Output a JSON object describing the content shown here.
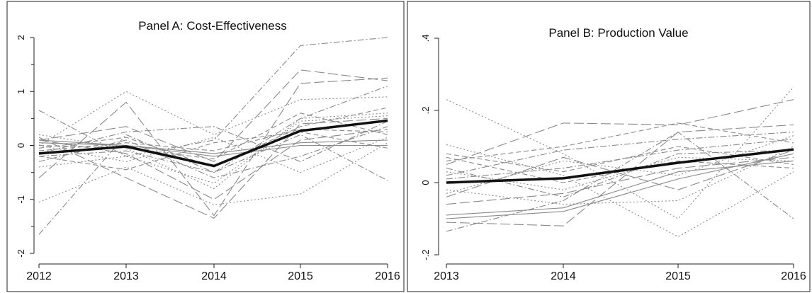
{
  "chart_data": [
    {
      "type": "line",
      "title": "Panel A: Cost-Effectiveness",
      "x": [
        "2012",
        "2013",
        "2014",
        "2015",
        "2016"
      ],
      "ylim": [
        -2,
        2
      ],
      "yticks": [
        "-2",
        "-1",
        "0",
        "1",
        "2"
      ],
      "grid": false,
      "legend": "none",
      "highlight_color": "#111111",
      "background_color": "#8a8a8a",
      "highlight_series": {
        "values": [
          -0.15,
          -0.02,
          -0.38,
          0.27,
          0.46
        ]
      },
      "series": [
        {
          "values": [
            0.65,
            -0.2,
            0.1,
            1.85,
            2.0
          ],
          "dash": "dashdot"
        },
        {
          "values": [
            0.1,
            0.35,
            -0.3,
            1.4,
            1.2
          ],
          "dash": "longdash"
        },
        {
          "values": [
            -0.6,
            0.8,
            -1.3,
            1.15,
            1.25
          ],
          "dash": "longdash"
        },
        {
          "values": [
            0.0,
            1.0,
            0.2,
            0.85,
            0.9
          ],
          "dash": "dot"
        },
        {
          "values": [
            -1.65,
            0.2,
            -0.5,
            0.5,
            1.1
          ],
          "dash": "dashdot"
        },
        {
          "values": [
            -1.05,
            -0.4,
            -1.1,
            -0.9,
            0.05
          ],
          "dash": "dot"
        },
        {
          "values": [
            0.15,
            -0.6,
            -1.35,
            0.4,
            0.5
          ],
          "dash": "longdash"
        },
        {
          "values": [
            -0.2,
            -0.1,
            -0.5,
            0.2,
            -0.65
          ],
          "dash": "dashdot"
        },
        {
          "values": [
            0.05,
            0.0,
            -0.2,
            0.0,
            0.0
          ],
          "dash": "solid"
        },
        {
          "values": [
            -0.1,
            0.05,
            -0.1,
            0.3,
            0.25
          ],
          "dash": "dash"
        },
        {
          "values": [
            0.2,
            -0.05,
            -0.8,
            0.5,
            0.6
          ],
          "dash": "dot"
        },
        {
          "values": [
            -0.3,
            0.1,
            -0.6,
            -0.2,
            0.35
          ],
          "dash": "dashdot"
        },
        {
          "values": [
            0.0,
            -0.3,
            0.15,
            -0.5,
            0.15
          ],
          "dash": "dot"
        },
        {
          "values": [
            -0.05,
            0.15,
            -0.4,
            0.35,
            0.7
          ],
          "dash": "dash"
        },
        {
          "values": [
            0.1,
            -0.15,
            -1.0,
            0.1,
            0.3
          ],
          "dash": "longdash"
        },
        {
          "values": [
            -0.15,
            0.25,
            0.35,
            -0.3,
            0.45
          ],
          "dash": "dashdot"
        },
        {
          "values": [
            0.0,
            -0.05,
            -0.25,
            0.6,
            0.2
          ],
          "dash": "dash"
        },
        {
          "values": [
            -0.4,
            -0.2,
            -0.7,
            0.45,
            0.55
          ],
          "dash": "dot"
        },
        {
          "values": [
            0.1,
            0.0,
            -0.15,
            0.05,
            0.1
          ],
          "dash": "solid"
        },
        {
          "values": [
            -0.2,
            -0.45,
            0.05,
            0.25,
            -0.05
          ],
          "dash": "dash"
        }
      ]
    },
    {
      "type": "line",
      "title": "Panel B: Production Value",
      "x": [
        "2013",
        "2014",
        "2015",
        "2016"
      ],
      "ylim": [
        -0.2,
        0.4
      ],
      "yticks": [
        "-.2",
        "0",
        ".2",
        ".4"
      ],
      "grid": false,
      "legend": "none",
      "highlight_color": "#111111",
      "background_color": "#8a8a8a",
      "highlight_series": {
        "values": [
          0.0,
          0.012,
          0.055,
          0.092
        ]
      },
      "series": [
        {
          "values": [
            0.23,
            0.08,
            -0.1,
            0.265
          ],
          "dash": "dot"
        },
        {
          "values": [
            0.05,
            0.165,
            0.16,
            0.23
          ],
          "dash": "longdash"
        },
        {
          "values": [
            -0.135,
            -0.05,
            0.14,
            -0.1
          ],
          "dash": "dashdot"
        },
        {
          "values": [
            0.105,
            0.02,
            -0.15,
            0.03
          ],
          "dash": "dot"
        },
        {
          "values": [
            -0.11,
            -0.12,
            0.14,
            0.16
          ],
          "dash": "longdash"
        },
        {
          "values": [
            -0.09,
            -0.07,
            0.03,
            0.06
          ],
          "dash": "solid"
        },
        {
          "values": [
            0.06,
            0.1,
            0.165,
            0.11
          ],
          "dash": "dash"
        },
        {
          "values": [
            0.04,
            -0.04,
            0.08,
            0.09
          ],
          "dash": "dashdot"
        },
        {
          "values": [
            -0.03,
            0.06,
            0.02,
            0.13
          ],
          "dash": "dot"
        },
        {
          "values": [
            0.08,
            0.03,
            0.1,
            0.05
          ],
          "dash": "dash"
        },
        {
          "values": [
            -0.06,
            -0.03,
            0.04,
            0.07
          ],
          "dash": "longdash"
        },
        {
          "values": [
            0.02,
            0.09,
            0.12,
            0.14
          ],
          "dash": "dashdot"
        },
        {
          "values": [
            -0.02,
            -0.06,
            -0.05,
            0.1
          ],
          "dash": "dot"
        },
        {
          "values": [
            0.07,
            0.0,
            0.06,
            0.04
          ],
          "dash": "dash"
        },
        {
          "values": [
            -0.1,
            -0.08,
            0.01,
            0.08
          ],
          "dash": "solid"
        },
        {
          "values": [
            0.01,
            0.04,
            0.09,
            0.12
          ],
          "dash": "dashdot"
        },
        {
          "values": [
            0.03,
            -0.02,
            0.07,
            0.06
          ],
          "dash": "dot"
        },
        {
          "values": [
            -0.04,
            0.07,
            -0.02,
            0.09
          ],
          "dash": "longdash"
        }
      ]
    }
  ]
}
